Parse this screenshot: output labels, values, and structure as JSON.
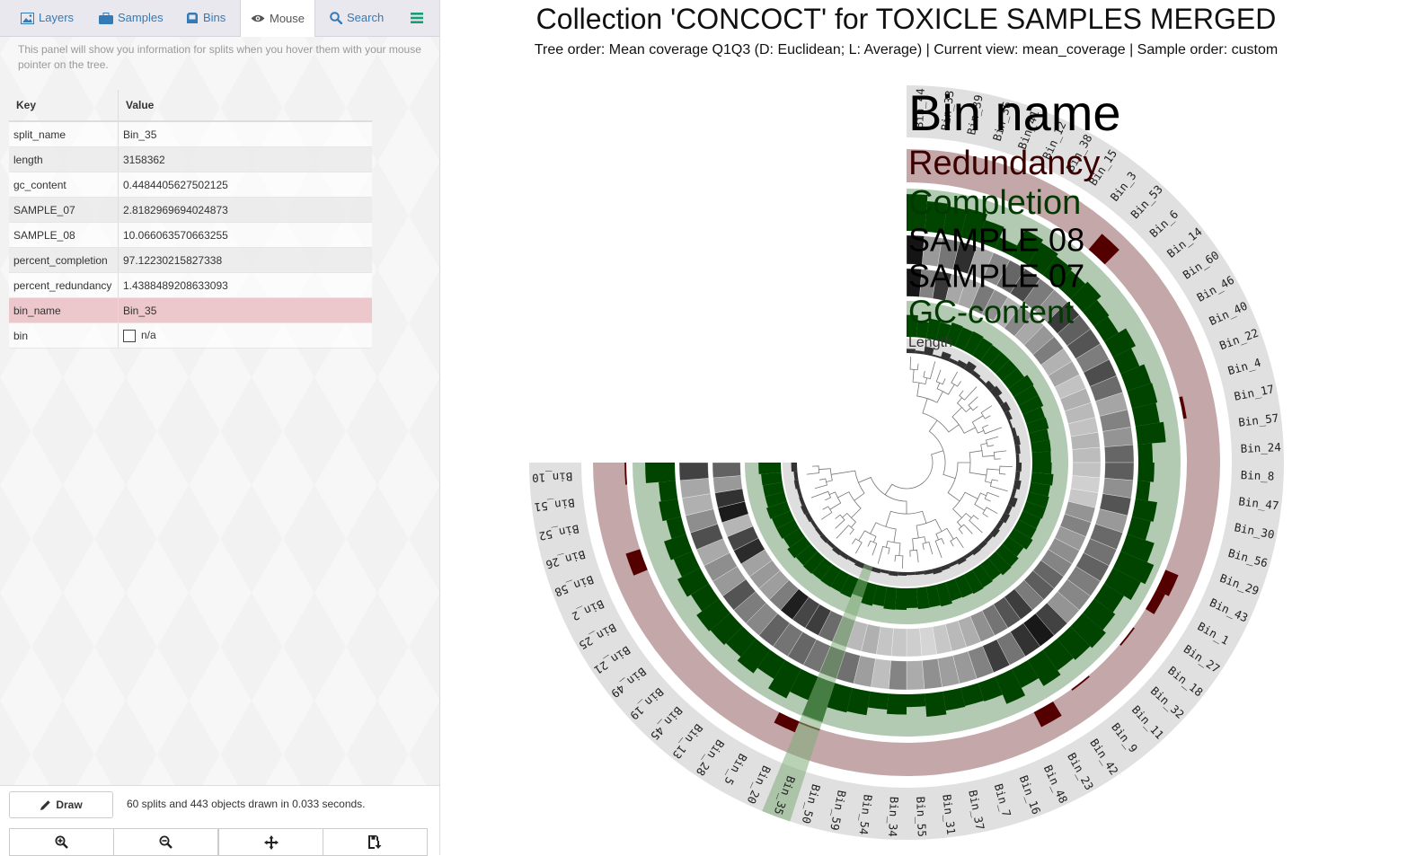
{
  "tabs": [
    {
      "label": "Layers",
      "icon": "picture-icon"
    },
    {
      "label": "Samples",
      "icon": "briefcase-icon"
    },
    {
      "label": "Bins",
      "icon": "bin-icon"
    },
    {
      "label": "Mouse",
      "icon": "eye-icon",
      "active": true
    },
    {
      "label": "Search",
      "icon": "search-icon"
    },
    {
      "label": "",
      "icon": "menu-icon"
    }
  ],
  "info_text": "This panel will show you information for splits when you hover them with your mouse pointer on the tree.",
  "kv_table": {
    "headers": {
      "key": "Key",
      "value": "Value"
    },
    "rows": [
      {
        "key": "split_name",
        "value": "Bin_35"
      },
      {
        "key": "length",
        "value": "3158362"
      },
      {
        "key": "gc_content",
        "value": "0.4484405627502125"
      },
      {
        "key": "SAMPLE_07",
        "value": "2.8182969694024873"
      },
      {
        "key": "SAMPLE_08",
        "value": "10.066063570663255"
      },
      {
        "key": "percent_completion",
        "value": "97.12230215827338"
      },
      {
        "key": "percent_redundancy",
        "value": "1.4388489208633093"
      },
      {
        "key": "bin_name",
        "value": "Bin_35",
        "highlight": true
      },
      {
        "key": "bin",
        "value": "n/a",
        "checkbox": true
      }
    ]
  },
  "footer": {
    "draw_label": "Draw",
    "status": "60 splits and 443 objects drawn in 0.033 seconds.",
    "buttons": [
      "zoom-in-icon",
      "zoom-out-icon",
      "center-icon",
      "save-icon"
    ]
  },
  "main": {
    "title": "Collection 'CONCOCT' for TOXICLE SAMPLES MERGED",
    "subtitle": "Tree order: Mean coverage Q1Q3 (D: Euclidean; L: Average) | Current view: mean_coverage | Sample order: custom"
  },
  "layer_titles": [
    {
      "label": "Bin name",
      "color": "#000000"
    },
    {
      "label": "Redundancy",
      "color": "#3a0000"
    },
    {
      "label": "Completion",
      "color": "#003a00"
    },
    {
      "label": "SAMPLE 08",
      "color": "#000000"
    },
    {
      "label": "SAMPLE 07",
      "color": "#000000"
    },
    {
      "label": "GC-content",
      "color": "#003a00"
    },
    {
      "label": "Length",
      "color": "#333333"
    }
  ],
  "colors": {
    "redundancy_bg": "#c4a7a9",
    "redundancy_fg": "#550000",
    "completion_bg": "#b2c9b2",
    "completion_fg": "#004400",
    "gc_fg": "#004800",
    "label_ring_bg": "#e0e0e0",
    "highlight": "#7fad78"
  },
  "bins": [
    {
      "name": "Bin_44",
      "redundancy": 0.0,
      "completion": 0.87,
      "s08": 0.98,
      "s07": 0.97,
      "gc": 0.61,
      "len": 0.3
    },
    {
      "name": "Bin_33",
      "redundancy": 0.0,
      "completion": 0.72,
      "s08": 0.4,
      "s07": 0.5,
      "gc": 0.45,
      "len": 0.2
    },
    {
      "name": "Bin_39",
      "redundancy": 0.0,
      "completion": 0.66,
      "s08": 0.55,
      "s07": 0.82,
      "gc": 0.56,
      "len": 0.55
    },
    {
      "name": "Bin_36",
      "redundancy": 0.0,
      "completion": 0.7,
      "s08": 0.86,
      "s07": 0.34,
      "gc": 0.52,
      "len": 0.12
    },
    {
      "name": "Bin_41",
      "redundancy": 0.0,
      "completion": 0.55,
      "s08": 0.35,
      "s07": 0.34,
      "gc": 0.6,
      "len": 0.5
    },
    {
      "name": "Bin_12",
      "redundancy": 0.0,
      "completion": 0.28,
      "s08": 0.48,
      "s07": 0.54,
      "gc": 0.58,
      "len": 0.25
    },
    {
      "name": "Bin_38",
      "redundancy": 0.0,
      "completion": 0.7,
      "s08": 0.62,
      "s07": 0.44,
      "gc": 0.6,
      "len": 0.4
    },
    {
      "name": "Bin_15",
      "redundancy": 0.0,
      "completion": 0.62,
      "s08": 0.74,
      "s07": 0.3,
      "gc": 0.57,
      "len": 0.65
    },
    {
      "name": "Bin_3",
      "redundancy": 0.0,
      "completion": 0.55,
      "s08": 0.53,
      "s07": 0.48,
      "gc": 0.55,
      "len": 0.3
    },
    {
      "name": "Bin_53",
      "redundancy": 0.62,
      "completion": 0.5,
      "s08": 0.44,
      "s07": 0.33,
      "gc": 0.55,
      "len": 0.18
    },
    {
      "name": "Bin_6",
      "redundancy": 0.0,
      "completion": 0.57,
      "s08": 0.81,
      "s07": 0.41,
      "gc": 0.55,
      "len": 0.45
    },
    {
      "name": "Bin_14",
      "redundancy": 0.0,
      "completion": 0.44,
      "s08": 0.65,
      "s07": 0.52,
      "gc": 0.55,
      "len": 0.6
    },
    {
      "name": "Bin_60",
      "redundancy": 0.0,
      "completion": 0.4,
      "s08": 0.7,
      "s07": 0.29,
      "gc": 0.65,
      "len": 0.3
    },
    {
      "name": "Bin_46",
      "redundancy": 0.0,
      "completion": 0.6,
      "s08": 0.52,
      "s07": 0.35,
      "gc": 0.62,
      "len": 0.5
    },
    {
      "name": "Bin_40",
      "redundancy": 0.0,
      "completion": 0.48,
      "s08": 0.73,
      "s07": 0.22,
      "gc": 0.62,
      "len": 0.35
    },
    {
      "name": "Bin_22",
      "redundancy": 0.0,
      "completion": 0.6,
      "s08": 0.6,
      "s07": 0.3,
      "gc": 0.55,
      "len": 0.15
    },
    {
      "name": "Bin_4",
      "redundancy": 0.0,
      "completion": 0.62,
      "s08": 0.35,
      "s07": 0.26,
      "gc": 0.57,
      "len": 0.28
    },
    {
      "name": "Bin_17",
      "redundancy": 0.1,
      "completion": 0.58,
      "s08": 0.5,
      "s07": 0.22,
      "gc": 0.52,
      "len": 0.4
    },
    {
      "name": "Bin_57",
      "redundancy": 0.0,
      "completion": 0.67,
      "s08": 0.42,
      "s07": 0.28,
      "gc": 0.53,
      "len": 0.32
    },
    {
      "name": "Bin_24",
      "redundancy": 0.0,
      "completion": 0.34,
      "s08": 0.62,
      "s07": 0.25,
      "gc": 0.52,
      "len": 0.22
    },
    {
      "name": "Bin_8",
      "redundancy": 0.0,
      "completion": 0.38,
      "s08": 0.66,
      "s07": 0.22,
      "gc": 0.54,
      "len": 0.38
    },
    {
      "name": "Bin_47",
      "redundancy": 0.0,
      "completion": 0.3,
      "s08": 0.44,
      "s07": 0.16,
      "gc": 0.6,
      "len": 0.3
    },
    {
      "name": "Bin_30",
      "redundancy": 0.0,
      "completion": 0.52,
      "s08": 0.7,
      "s07": 0.2,
      "gc": 0.55,
      "len": 0.45
    },
    {
      "name": "Bin_56",
      "redundancy": 0.0,
      "completion": 0.46,
      "s08": 0.4,
      "s07": 0.42,
      "gc": 0.58,
      "len": 0.25
    },
    {
      "name": "Bin_29",
      "redundancy": 0.0,
      "completion": 0.68,
      "s08": 0.61,
      "s07": 0.5,
      "gc": 0.58,
      "len": 0.5
    },
    {
      "name": "Bin_43",
      "redundancy": 0.42,
      "completion": 0.85,
      "s08": 0.57,
      "s07": 0.4,
      "gc": 0.55,
      "len": 0.35
    },
    {
      "name": "Bin_1",
      "redundancy": 0.3,
      "completion": 0.74,
      "s08": 0.64,
      "s07": 0.45,
      "gc": 0.56,
      "len": 0.45
    },
    {
      "name": "Bin_27",
      "redundancy": 0.0,
      "completion": 0.55,
      "s08": 0.52,
      "s07": 0.49,
      "gc": 0.62,
      "len": 0.3
    },
    {
      "name": "Bin_18",
      "redundancy": 0.05,
      "completion": 0.62,
      "s08": 0.48,
      "s07": 0.62,
      "gc": 0.53,
      "len": 0.4
    },
    {
      "name": "Bin_32",
      "redundancy": 0.0,
      "completion": 0.72,
      "s08": 0.42,
      "s07": 0.66,
      "gc": 0.6,
      "len": 0.28
    },
    {
      "name": "Bin_11",
      "redundancy": 0.0,
      "completion": 0.66,
      "s08": 0.78,
      "s07": 0.53,
      "gc": 0.62,
      "len": 0.32
    },
    {
      "name": "Bin_9",
      "redundancy": 0.05,
      "completion": 0.6,
      "s08": 0.96,
      "s07": 0.8,
      "gc": 0.55,
      "len": 0.35
    },
    {
      "name": "Bin_42",
      "redundancy": 0.0,
      "completion": 0.72,
      "s08": 0.85,
      "s07": 0.7,
      "gc": 0.58,
      "len": 0.25
    },
    {
      "name": "Bin_23",
      "redundancy": 0.5,
      "completion": 0.5,
      "s08": 0.56,
      "s07": 0.56,
      "gc": 0.6,
      "len": 0.35
    },
    {
      "name": "Bin_48",
      "redundancy": 0.0,
      "completion": 0.7,
      "s08": 0.8,
      "s07": 0.44,
      "gc": 0.57,
      "len": 0.25
    },
    {
      "name": "Bin_16",
      "redundancy": 0.0,
      "completion": 0.46,
      "s08": 0.5,
      "s07": 0.31,
      "gc": 0.55,
      "len": 0.3
    },
    {
      "name": "Bin_7",
      "redundancy": 0.0,
      "completion": 0.44,
      "s08": 0.4,
      "s07": 0.26,
      "gc": 0.62,
      "len": 0.38
    },
    {
      "name": "Bin_37",
      "redundancy": 0.0,
      "completion": 0.46,
      "s08": 0.38,
      "s07": 0.2,
      "gc": 0.58,
      "len": 0.28
    },
    {
      "name": "Bin_31",
      "redundancy": 0.0,
      "completion": 0.55,
      "s08": 0.44,
      "s07": 0.14,
      "gc": 0.59,
      "len": 0.22
    },
    {
      "name": "Bin_55",
      "redundancy": 0.0,
      "completion": 0.3,
      "s08": 0.32,
      "s07": 0.17,
      "gc": 0.55,
      "len": 0.2
    },
    {
      "name": "Bin_34",
      "redundancy": 0.0,
      "completion": 0.48,
      "s08": 0.49,
      "s07": 0.2,
      "gc": 0.6,
      "len": 0.25
    },
    {
      "name": "Bin_54",
      "redundancy": 0.0,
      "completion": 0.38,
      "s08": 0.24,
      "s07": 0.21,
      "gc": 0.61,
      "len": 0.3
    },
    {
      "name": "Bin_59",
      "redundancy": 0.0,
      "completion": 0.57,
      "s08": 0.38,
      "s07": 0.3,
      "gc": 0.55,
      "len": 0.22
    },
    {
      "name": "Bin_50",
      "redundancy": 0.0,
      "completion": 0.6,
      "s08": 0.58,
      "s07": 0.26,
      "gc": 0.6,
      "len": 0.3
    },
    {
      "name": "Bin_35",
      "redundancy": 0.05,
      "completion": 0.97,
      "s08": 0.7,
      "s07": 0.42,
      "gc": 0.45,
      "len": 0.3,
      "selected": true
    },
    {
      "name": "Bin_20",
      "redundancy": 0.35,
      "completion": 0.6,
      "s08": 0.56,
      "s07": 0.6,
      "gc": 0.57,
      "len": 0.35
    },
    {
      "name": "Bin_5",
      "redundancy": 0.0,
      "completion": 0.78,
      "s08": 0.62,
      "s07": 0.8,
      "gc": 0.55,
      "len": 0.25
    },
    {
      "name": "Bin_28",
      "redundancy": 0.0,
      "completion": 0.52,
      "s08": 0.56,
      "s07": 0.76,
      "gc": 0.56,
      "len": 0.3
    },
    {
      "name": "Bin_13",
      "redundancy": 0.0,
      "completion": 0.68,
      "s08": 0.64,
      "s07": 0.93,
      "gc": 0.55,
      "len": 0.35
    },
    {
      "name": "Bin_45",
      "redundancy": 0.0,
      "completion": 0.56,
      "s08": 0.48,
      "s07": 0.52,
      "gc": 0.57,
      "len": 0.25
    },
    {
      "name": "Bin_19",
      "redundancy": 0.0,
      "completion": 0.62,
      "s08": 0.52,
      "s07": 0.38,
      "gc": 0.55,
      "len": 0.3
    },
    {
      "name": "Bin_49",
      "redundancy": 0.0,
      "completion": 0.66,
      "s08": 0.7,
      "s07": 0.4,
      "gc": 0.6,
      "len": 0.25
    },
    {
      "name": "Bin_21",
      "redundancy": 0.0,
      "completion": 0.5,
      "s08": 0.4,
      "s07": 0.36,
      "gc": 0.52,
      "len": 0.22
    },
    {
      "name": "Bin_25",
      "redundancy": 0.0,
      "completion": 0.6,
      "s08": 0.45,
      "s07": 0.88,
      "gc": 0.56,
      "len": 0.3
    },
    {
      "name": "Bin_2",
      "redundancy": 0.0,
      "completion": 0.48,
      "s08": 0.33,
      "s07": 0.76,
      "gc": 0.56,
      "len": 0.35
    },
    {
      "name": "Bin_58",
      "redundancy": 0.45,
      "completion": 0.55,
      "s08": 0.72,
      "s07": 0.28,
      "gc": 0.6,
      "len": 0.25
    },
    {
      "name": "Bin_26",
      "redundancy": 0.0,
      "completion": 0.36,
      "s08": 0.45,
      "s07": 0.95,
      "gc": 0.55,
      "len": 0.22
    },
    {
      "name": "Bin_52",
      "redundancy": 0.0,
      "completion": 0.45,
      "s08": 0.3,
      "s07": 0.85,
      "gc": 0.55,
      "len": 0.3
    },
    {
      "name": "Bin_51",
      "redundancy": 0.0,
      "completion": 0.4,
      "s08": 0.34,
      "s07": 0.4,
      "gc": 0.56,
      "len": 0.25
    },
    {
      "name": "Bin_10",
      "redundancy": 0.05,
      "completion": 0.7,
      "s08": 0.78,
      "s07": 0.64,
      "gc": 0.62,
      "len": 0.4
    }
  ]
}
